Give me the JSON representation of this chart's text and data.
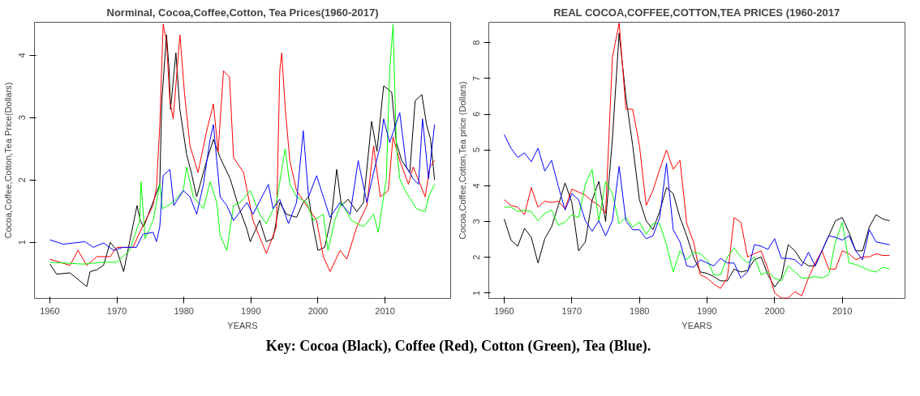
{
  "chart_data": [
    {
      "type": "line",
      "title": "Norminal, Cocoa,Coffee,Cotton, Tea Prices(1960-2017)",
      "xlabel": "YEARS",
      "ylabel": "Cocoa,Coffee,Cotton,Tea Price(Dollars)",
      "xlim": [
        1957.7,
        2019.8
      ],
      "ylim": [
        0.1,
        4.53
      ],
      "xticks": [
        1960,
        1970,
        1980,
        1990,
        2000,
        2010
      ],
      "yticks": [
        1,
        2,
        3,
        4
      ],
      "grid": false,
      "line_style": "solid",
      "series": [
        {
          "color": "#000000",
          "x": [
            1960,
            1961,
            1963,
            1965.5,
            1966,
            1967,
            1968,
            1969,
            1970,
            1971,
            1973,
            1973.5,
            1974,
            1976.4,
            1976.7,
            1977.4,
            1977.8,
            1978,
            1978.8,
            1979.4,
            1980.4,
            1981.1,
            1981.9,
            1983.4,
            1984.4,
            1985.4,
            1986.9,
            1988.1,
            1989.4,
            1989.9,
            1991.3,
            1992.3,
            1993.3,
            1994.3,
            1995.3,
            1996.8,
            1997.8,
            1998.6,
            1999.3,
            2000,
            2001,
            2002,
            2002.8,
            2003.5,
            2004.5,
            2005.8,
            2006.8,
            2008,
            2008.8,
            2009.8,
            2011,
            2011.7,
            2012.5,
            2013.7,
            2014.5,
            2015.5,
            2016.2,
            2016.8,
            2017.4
          ],
          "values": [
            0.65,
            0.49,
            0.51,
            0.29,
            0.53,
            0.56,
            0.63,
            1.0,
            0.87,
            0.53,
            1.59,
            1.35,
            1.25,
            1.93,
            3.27,
            4.33,
            3.75,
            3.13,
            4.04,
            3.13,
            2.41,
            2.12,
            1.73,
            2.31,
            2.65,
            2.36,
            2.02,
            1.59,
            1.21,
            1.01,
            1.35,
            1.01,
            1.06,
            1.64,
            1.45,
            1.4,
            1.64,
            1.73,
            1.25,
            0.87,
            0.92,
            1.4,
            2.17,
            1.59,
            1.69,
            1.49,
            1.64,
            2.94,
            2.46,
            3.51,
            3.41,
            2.6,
            2.31,
            2.12,
            3.27,
            3.37,
            2.89,
            2.65,
            2.0
          ]
        },
        {
          "color": "#ff0000",
          "x": [
            1960,
            1963,
            1964.2,
            1965.5,
            1967,
            1969,
            1970,
            1972.4,
            1973.4,
            1975.4,
            1975.9,
            1976.4,
            1976.9,
            1977.4,
            1977.9,
            1978.4,
            1979.4,
            1980.1,
            1980.9,
            1982.1,
            1983.4,
            1984.4,
            1985.1,
            1985.9,
            1986.8,
            1987.4,
            1988.9,
            1990.3,
            1992.3,
            1993.8,
            1994.3,
            1994.6,
            1995.1,
            1995.8,
            1996.8,
            1998.3,
            1999.8,
            2000.8,
            2001.8,
            2003.3,
            2004.3,
            2005.8,
            2007.3,
            2008.3,
            2009.3,
            2010.5,
            2011.2,
            2012.2,
            2013.5,
            2014.2,
            2016,
            2016.7,
            2017.4
          ],
          "values": [
            0.73,
            0.63,
            0.87,
            0.63,
            0.77,
            0.77,
            0.92,
            0.92,
            1.16,
            1.59,
            1.88,
            2.89,
            4.5,
            4.23,
            3.27,
            2.98,
            4.33,
            3.37,
            2.55,
            2.12,
            2.79,
            3.22,
            2.45,
            3.75,
            3.65,
            2.36,
            2.12,
            1.35,
            0.82,
            1.25,
            3.75,
            4.04,
            3.17,
            2.31,
            1.83,
            1.59,
            1.35,
            0.77,
            0.53,
            0.87,
            0.73,
            1.25,
            1.59,
            2.55,
            1.73,
            1.83,
            2.69,
            2.31,
            1.93,
            2.21,
            1.73,
            2.21,
            2.31
          ]
        },
        {
          "color": "#00ff00",
          "x": [
            1960,
            1965,
            1968,
            1970,
            1971.9,
            1973.4,
            1973.6,
            1974.2,
            1975.4,
            1976.4,
            1976.8,
            1978.4,
            1979.9,
            1980.4,
            1981.4,
            1982.9,
            1983.9,
            1984.9,
            1985.4,
            1986.4,
            1987.4,
            1988.4,
            1989.9,
            1991.3,
            1992.3,
            1993.8,
            1995.1,
            1995.8,
            1996.8,
            1998.3,
            1999.3,
            2000.8,
            2001.5,
            2002.5,
            2003.5,
            2005,
            2006.8,
            2008.3,
            2009,
            2010.2,
            2010.7,
            2011.2,
            2011.7,
            2012.2,
            2013,
            2014.7,
            2016,
            2016.5,
            2017.4
          ],
          "values": [
            0.68,
            0.65,
            0.68,
            0.68,
            0.87,
            1.35,
            1.97,
            1.06,
            1.35,
            1.93,
            1.54,
            1.64,
            1.83,
            2.21,
            1.73,
            1.54,
            1.97,
            1.64,
            1.11,
            0.87,
            1.59,
            1.64,
            1.83,
            1.45,
            1.3,
            1.64,
            2.5,
            1.93,
            1.73,
            1.64,
            1.35,
            1.45,
            0.87,
            1.35,
            1.64,
            1.35,
            1.25,
            1.45,
            1.16,
            2.02,
            3.75,
            4.5,
            2.55,
            2.02,
            1.83,
            1.54,
            1.49,
            1.73,
            1.93
          ]
        },
        {
          "color": "#0000ff",
          "x": [
            1960,
            1962,
            1965.2,
            1966.5,
            1968,
            1969.5,
            1970.9,
            1972.9,
            1973.9,
            1975.4,
            1975.9,
            1976.4,
            1976.9,
            1977.9,
            1978.5,
            1979.9,
            1980.9,
            1981.9,
            1982.9,
            1983.9,
            1984.4,
            1985.4,
            1986.4,
            1987.4,
            1989.4,
            1990.3,
            1992.6,
            1993.3,
            1994.3,
            1995.6,
            1996.8,
            1997.8,
            1998.6,
            1999.8,
            2000.8,
            2001.8,
            2003.3,
            2004.8,
            2006,
            2007.3,
            2008.3,
            2009.3,
            2009.8,
            2010.7,
            2012.2,
            2013.2,
            2014.2,
            2015,
            2015.6,
            2016.5,
            2017.4
          ],
          "values": [
            1.04,
            0.97,
            1.01,
            0.92,
            0.99,
            0.87,
            0.92,
            0.92,
            1.13,
            1.16,
            1.01,
            1.25,
            2.07,
            2.17,
            1.59,
            1.83,
            1.73,
            1.45,
            1.93,
            2.65,
            2.89,
            1.73,
            1.59,
            1.35,
            1.64,
            1.45,
            1.93,
            1.54,
            1.69,
            1.3,
            1.64,
            2.79,
            1.73,
            2.07,
            1.73,
            1.4,
            1.64,
            1.45,
            2.31,
            1.64,
            2.12,
            2.55,
            2.98,
            2.6,
            3.08,
            2.21,
            2.02,
            1.93,
            2.98,
            2.02,
            2.89
          ]
        }
      ]
    },
    {
      "type": "line",
      "title": "REAL COCOA,COFFEE,COTTON,TEA PRICES (1960-2017",
      "xlabel": "YEARS",
      "ylabel": "Cocoa,Coffee,Cotton,Tea price (Dollars)",
      "xlim": [
        1957.72,
        2019.28
      ],
      "ylim": [
        0.85,
        8.57
      ],
      "xticks": [
        1960,
        1970,
        1980,
        1990,
        2000,
        2010
      ],
      "yticks": [
        1,
        2,
        3,
        4,
        5,
        6,
        7,
        8
      ],
      "grid": false,
      "line_style": "solid",
      "annotations": [
        "Key: Cocoa (Black), Coffee (Red), Cotton (Green), Tea (Blue)."
      ],
      "x": [
        1960,
        1961,
        1962,
        1963,
        1964,
        1965,
        1966,
        1967,
        1968,
        1969,
        1970,
        1971,
        1972,
        1973,
        1974,
        1975,
        1976,
        1977,
        1978,
        1979,
        1980,
        1981,
        1982,
        1983,
        1984,
        1985,
        1986,
        1987,
        1988,
        1989,
        1990,
        1991,
        1992,
        1993,
        1994,
        1995,
        1996,
        1997,
        1998,
        1999,
        2000,
        2001,
        2002,
        2003,
        2004,
        2005,
        2006,
        2007,
        2008,
        2009,
        2010,
        2011,
        2012,
        2013,
        2014,
        2015,
        2016,
        2017
      ],
      "series": [
        {
          "color": "#000000",
          "values": [
            3.07,
            2.48,
            2.31,
            2.81,
            2.56,
            1.84,
            2.52,
            2.85,
            3.45,
            4.08,
            3.53,
            2.18,
            2.43,
            3.6,
            4.12,
            3.0,
            5.3,
            8.27,
            6.48,
            5.13,
            3.61,
            3.02,
            2.77,
            3.28,
            3.95,
            3.78,
            3.11,
            2.6,
            2.01,
            1.59,
            1.55,
            1.46,
            1.34,
            1.34,
            1.67,
            1.59,
            1.63,
            1.93,
            2.01,
            1.51,
            1.17,
            1.42,
            2.35,
            2.18,
            1.89,
            1.76,
            1.76,
            2.18,
            2.6,
            3.02,
            3.11,
            2.69,
            2.18,
            2.18,
            2.85,
            3.19,
            3.07,
            3.02
          ]
        },
        {
          "color": "#ff0000",
          "values": [
            3.61,
            3.45,
            3.4,
            3.19,
            3.95,
            3.4,
            3.57,
            3.53,
            3.57,
            3.36,
            3.91,
            3.82,
            3.74,
            3.57,
            3.45,
            3.23,
            7.58,
            8.55,
            6.14,
            6.14,
            5.13,
            3.45,
            3.87,
            4.46,
            5.0,
            4.46,
            4.71,
            2.94,
            2.43,
            1.51,
            1.42,
            1.25,
            1.13,
            1.42,
            3.11,
            2.98,
            2.01,
            2.1,
            2.18,
            1.67,
            1.0,
            0.86,
            0.86,
            1.04,
            0.92,
            1.42,
            1.84,
            2.18,
            1.67,
            1.67,
            2.18,
            2.1,
            1.93,
            2.01,
            2.01,
            2.1,
            2.05,
            2.05
          ]
        },
        {
          "color": "#00ff00",
          "values": [
            3.4,
            3.4,
            3.28,
            3.32,
            3.28,
            3.02,
            3.23,
            3.32,
            2.9,
            2.98,
            3.19,
            3.11,
            4.04,
            4.46,
            3.02,
            4.12,
            3.78,
            2.94,
            3.11,
            2.85,
            2.98,
            2.64,
            2.94,
            2.94,
            2.35,
            1.59,
            2.18,
            1.93,
            2.14,
            2.1,
            1.93,
            1.51,
            1.51,
            2.01,
            2.26,
            2.01,
            1.84,
            2.01,
            1.51,
            1.59,
            1.42,
            1.34,
            1.76,
            1.59,
            1.42,
            1.42,
            1.46,
            1.42,
            1.51,
            2.43,
            2.98,
            1.84,
            1.8,
            1.72,
            1.63,
            1.59,
            1.72,
            1.67
          ]
        },
        {
          "color": "#0000ff",
          "values": [
            5.43,
            5.05,
            4.79,
            4.92,
            4.67,
            5.05,
            4.41,
            4.71,
            3.99,
            3.32,
            3.78,
            3.61,
            3.02,
            2.73,
            3.02,
            2.6,
            3.02,
            4.54,
            3.02,
            2.77,
            2.77,
            2.52,
            2.6,
            3.11,
            4.63,
            2.77,
            2.43,
            1.76,
            1.72,
            1.93,
            1.84,
            1.76,
            1.97,
            1.84,
            1.84,
            1.42,
            1.59,
            2.35,
            2.31,
            2.22,
            2.52,
            1.97,
            1.97,
            1.93,
            1.76,
            2.14,
            1.76,
            2.18,
            2.6,
            2.56,
            2.48,
            2.6,
            2.18,
            1.93,
            2.77,
            2.43,
            2.39,
            2.35
          ]
        }
      ]
    }
  ]
}
